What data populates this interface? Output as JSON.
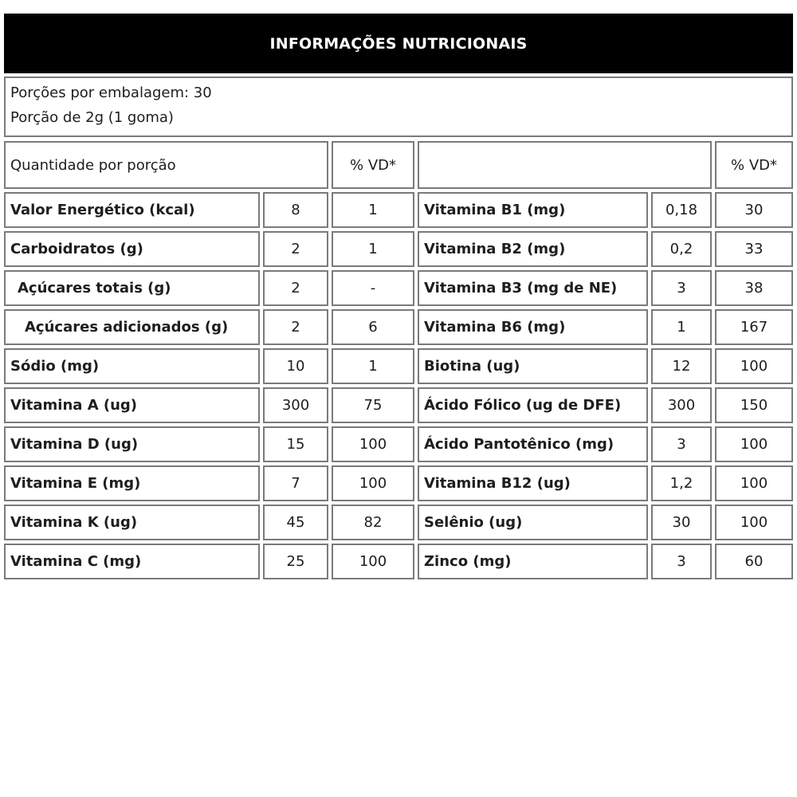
{
  "title": "INFORMAÇÕES NUTRICIONAIS",
  "servings_per_package": "Porções por embalagem: 30",
  "serving_size": "Porção de 2g (1 goma)",
  "header": {
    "quantity_label": "Quantidade por porção",
    "vd_label_left": "% VD*",
    "vd_label_right": "% VD*"
  },
  "rows": [
    {
      "left": {
        "name": "Valor Energético (kcal)",
        "amount": "8",
        "vd": "1"
      },
      "right": {
        "name": "Vitamina B1 (mg)",
        "amount": "0,18",
        "vd": "30"
      }
    },
    {
      "left": {
        "name": "Carboidratos (g)",
        "amount": "2",
        "vd": "1"
      },
      "right": {
        "name": "Vitamina B2 (mg)",
        "amount": "0,2",
        "vd": "33"
      }
    },
    {
      "left": {
        "name": "Açúcares totais (g)",
        "amount": "2",
        "vd": "-"
      },
      "right": {
        "name": "Vitamina B3 (mg de NE)",
        "amount": "3",
        "vd": "38"
      }
    },
    {
      "left": {
        "name": "Açúcares adicionados (g)",
        "amount": "2",
        "vd": "6"
      },
      "right": {
        "name": "Vitamina B6 (mg)",
        "amount": "1",
        "vd": "167"
      }
    },
    {
      "left": {
        "name": "Sódio (mg)",
        "amount": "10",
        "vd": "1"
      },
      "right": {
        "name": "Biotina (ug)",
        "amount": "12",
        "vd": "100"
      }
    },
    {
      "left": {
        "name": "Vitamina A (ug)",
        "amount": "300",
        "vd": "75"
      },
      "right": {
        "name": "Ácido Fólico (ug de DFE)",
        "amount": "300",
        "vd": "150"
      }
    },
    {
      "left": {
        "name": "Vitamina D (ug)",
        "amount": "15",
        "vd": "100"
      },
      "right": {
        "name": "Ácido Pantotênico (mg)",
        "amount": "3",
        "vd": "100"
      }
    },
    {
      "left": {
        "name": "Vitamina E (mg)",
        "amount": "7",
        "vd": "100"
      },
      "right": {
        "name": "Vitamina B12 (ug)",
        "amount": "1,2",
        "vd": "100"
      }
    },
    {
      "left": {
        "name": "Vitamina K (ug)",
        "amount": "45",
        "vd": "82"
      },
      "right": {
        "name": "Selênio (ug)",
        "amount": "30",
        "vd": "100"
      }
    },
    {
      "left": {
        "name": "Vitamina C (mg)",
        "amount": "25",
        "vd": "100"
      },
      "right": {
        "name": "Zinco (mg)",
        "amount": "3",
        "vd": "60"
      }
    }
  ]
}
